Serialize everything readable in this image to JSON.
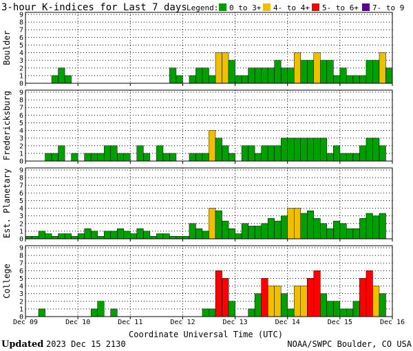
{
  "header": {
    "title": "3-hour K-indices for Last 7 days",
    "legend_label": "Legend:",
    "legend": [
      {
        "label": "0 to 3+",
        "color": "#00a000"
      },
      {
        "label": "4- to 4+",
        "color": "#f0c000"
      },
      {
        "label": "5- to 6+",
        "color": "#ff0000"
      },
      {
        "label": "7- to 9",
        "color": "#5a0099"
      }
    ]
  },
  "footer": {
    "updated_label": "Updated",
    "updated_value": "2023 Dec 15 2130",
    "credit": "NOAA/SWPC Boulder, CO USA"
  },
  "chart_data": {
    "type": "bar",
    "xlabel": "Coordinate Universal Time (UTC)",
    "x_ticks": [
      "Dec 09",
      "Dec 10",
      "Dec 11",
      "Dec 12",
      "Dec 13",
      "Dec 14",
      "Dec 15",
      "Dec 16"
    ],
    "y_ticks": [
      0,
      1,
      2,
      3,
      4,
      5,
      6,
      7,
      8,
      9
    ],
    "ylim": [
      0,
      9
    ],
    "bins_per_day": 8,
    "days": 7,
    "grid": "dotted",
    "panels": [
      {
        "name": "Boulder",
        "values": [
          0,
          0,
          0,
          0,
          1,
          2,
          1,
          0,
          0,
          0,
          0,
          0,
          0,
          0,
          0,
          0,
          0,
          0,
          0,
          0,
          0,
          0,
          2,
          1,
          0,
          1,
          2,
          2,
          1,
          4,
          4,
          3,
          1,
          1,
          2,
          2,
          2,
          2,
          3,
          2,
          2,
          4,
          3,
          3,
          4,
          3,
          3,
          1,
          2,
          1,
          1,
          1,
          3,
          3,
          4,
          2
        ]
      },
      {
        "name": "Fredericksburg",
        "values": [
          0,
          0,
          0,
          1,
          1,
          2,
          0,
          1,
          0,
          1,
          1,
          1,
          2,
          2,
          1,
          1,
          0,
          2,
          1,
          0,
          2,
          1,
          1,
          0,
          0,
          1,
          1,
          1,
          4,
          3,
          2,
          1,
          0,
          2,
          2,
          1,
          2,
          2,
          2,
          3,
          3,
          3,
          3,
          3,
          3,
          3,
          1,
          2,
          1,
          1,
          1,
          2,
          3,
          3,
          2,
          0
        ]
      },
      {
        "name": "Est. Planetary",
        "values": [
          0.33,
          0.33,
          1,
          0.67,
          0.33,
          0.67,
          0.67,
          0.33,
          0.67,
          1.33,
          1,
          0.33,
          1,
          1,
          1.33,
          1,
          0.67,
          1.33,
          1,
          0.33,
          0.67,
          0.67,
          0.33,
          0.33,
          0.33,
          2,
          1.33,
          1,
          4,
          3.67,
          2.33,
          1.33,
          0.67,
          2,
          1.67,
          1.67,
          2,
          2.67,
          2.33,
          3,
          4,
          4,
          3.33,
          3.67,
          2.67,
          2,
          1.33,
          2.33,
          2,
          1.33,
          1.33,
          2.67,
          3.33,
          3,
          3.33
        ]
      },
      {
        "name": "College",
        "values": [
          0,
          0,
          1,
          0,
          0,
          0,
          0,
          0,
          0,
          0,
          1,
          2,
          0,
          1,
          0,
          0,
          0,
          0,
          0,
          0,
          0,
          0,
          0,
          0,
          0,
          0,
          0,
          1,
          1,
          6,
          5,
          2,
          0,
          0,
          1,
          3,
          5,
          4,
          4,
          3,
          1,
          4,
          4,
          5,
          6,
          3,
          2,
          2,
          1,
          1,
          2,
          5,
          6,
          4,
          3,
          0
        ]
      }
    ]
  }
}
